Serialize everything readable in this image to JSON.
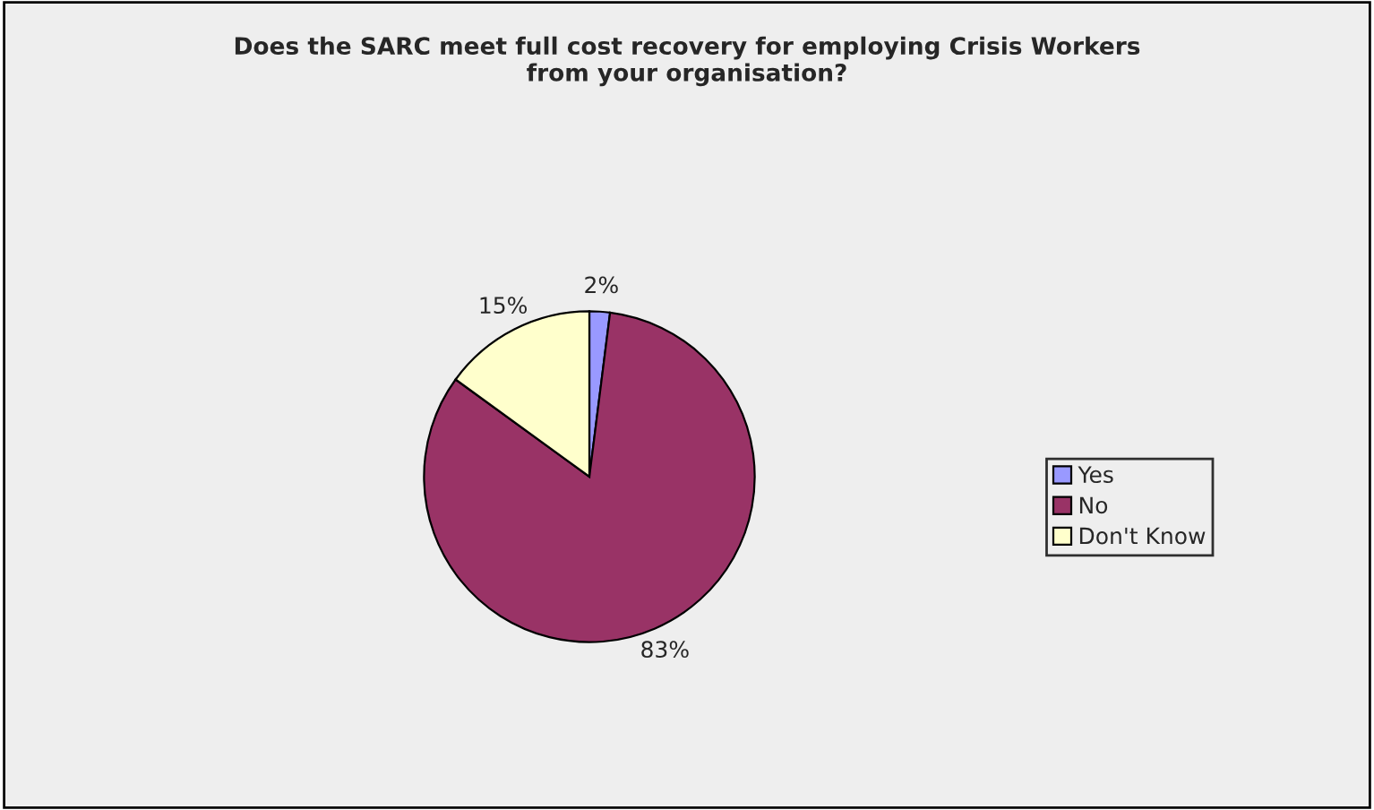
{
  "chart_data": {
    "type": "pie",
    "title": "Does the SARC meet full cost recovery for employing Crisis Workers\nfrom your organisation?",
    "categories": [
      "Yes",
      "No",
      "Don't Know"
    ],
    "values": [
      2,
      83,
      15
    ],
    "colors": [
      "#9999ff",
      "#993366",
      "#ffffcc"
    ],
    "value_labels": [
      "2%",
      "83%",
      "15%"
    ],
    "legend": "right"
  }
}
